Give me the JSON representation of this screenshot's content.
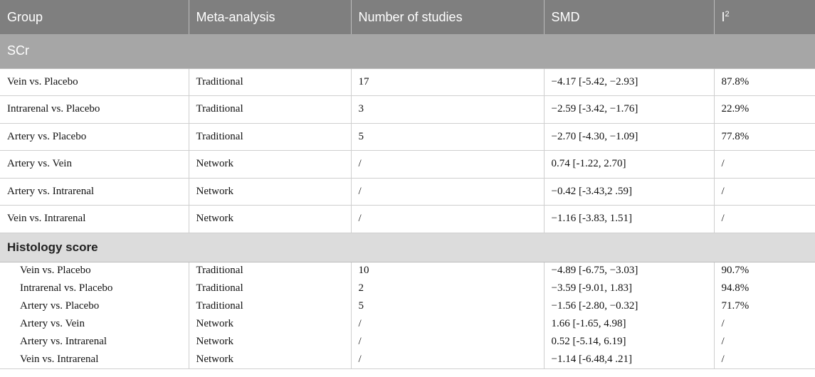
{
  "table": {
    "headers": [
      "Group",
      "Meta-analysis",
      "Number of studies",
      "SMD",
      "I",
      "2"
    ],
    "sections": [
      {
        "title": "SCr",
        "rows": [
          [
            "Vein vs. Placebo",
            "Traditional",
            "17",
            "−4.17 [-5.42, −2.93]",
            "87.8%"
          ],
          [
            "Intrarenal vs. Placebo",
            "Traditional",
            "3",
            "−2.59 [-3.42, −1.76]",
            "22.9%"
          ],
          [
            "Artery vs. Placebo",
            "Traditional",
            "5",
            "−2.70 [-4.30, −1.09]",
            "77.8%"
          ],
          [
            "Artery vs. Vein",
            "Network",
            "/",
            "0.74 [-1.22, 2.70]",
            "/"
          ],
          [
            "Artery vs. Intrarenal",
            "Network",
            "/",
            "−0.42 [-3.43,2 .59]",
            "/"
          ],
          [
            "Vein vs. Intrarenal",
            "Network",
            "/",
            "−1.16 [-3.83, 1.51]",
            "/"
          ]
        ]
      },
      {
        "title": "Histology score",
        "rows": [
          [
            "Vein vs. Placebo",
            "Traditional",
            "10",
            "−4.89 [-6.75, −3.03]",
            "90.7%"
          ],
          [
            "Intrarenal vs. Placebo",
            "Traditional",
            "2",
            "−3.59 [-9.01, 1.83]",
            "94.8%"
          ],
          [
            "Artery vs. Placebo",
            "Traditional",
            "5",
            "−1.56 [-2.80, −0.32]",
            "71.7%"
          ],
          [
            "Artery vs. Vein",
            "Network",
            "/",
            "1.66 [-1.65, 4.98]",
            "/"
          ],
          [
            "Artery vs. Intrarenal",
            "Network",
            "/",
            "0.52 [-5.14, 6.19]",
            "/"
          ],
          [
            "Vein vs. Intrarenal",
            "Network",
            "/",
            "−1.14 [-6.48,4 .21]",
            "/"
          ]
        ]
      }
    ]
  }
}
